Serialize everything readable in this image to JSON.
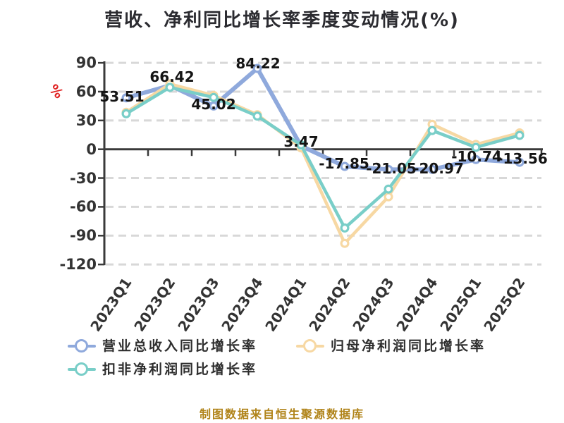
{
  "title": "营收、净利同比增长率季度变动情况(%)",
  "y_axis": {
    "unit": "%",
    "unit_color": "#E02020",
    "tick_labels": [
      "90",
      "60",
      "30",
      "0",
      "-30",
      "-60",
      "-90",
      "-120"
    ],
    "min": -120,
    "max": 90,
    "interval": 30
  },
  "chart_data": {
    "type": "line",
    "categories": [
      "2023Q1",
      "2023Q2",
      "2023Q3",
      "2023Q4",
      "2024Q1",
      "2024Q2",
      "2024Q3",
      "2024Q4",
      "2025Q1",
      "2025Q2"
    ],
    "ylim": [
      -120,
      90
    ],
    "grid": "horizontal dashed gridlines",
    "legend_position": "bottom-left",
    "series": [
      {
        "name": "营业总收入同比增长率",
        "color": "#8FA9DC",
        "line_width": 6,
        "values": [
          53.51,
          66.42,
          45.02,
          84.22,
          3.47,
          -17.85,
          -21.05,
          -20.97,
          -10.74,
          -13.56
        ],
        "point_labels": [
          "53.51",
          "66.42",
          "45.02",
          "84.22",
          "3.47",
          "-17.85",
          "-21.05",
          "-20.97",
          "-10.74",
          "-13.56"
        ]
      },
      {
        "name": "归母净利润同比增长率",
        "color": "#F7D8A3",
        "line_width": 4.5,
        "values": [
          38.5,
          68,
          56,
          36,
          1.5,
          -98,
          -49.5,
          26,
          5,
          17
        ]
      },
      {
        "name": "扣非净利润同比增长率",
        "color": "#79CEC8",
        "line_width": 4.5,
        "values": [
          37,
          64.5,
          54,
          34.5,
          4.5,
          -82,
          -41.5,
          19.5,
          2,
          14.5
        ]
      }
    ]
  },
  "footer": {
    "text": "制图数据来自恒生聚源数据库",
    "color": "#B08318"
  },
  "colors": {
    "background": "#FFFFFF",
    "axis": "#3A3A3A",
    "gridline": "#D8D8D8",
    "tick_label": "#333333",
    "data_label": "#141414",
    "title": "#2B2B30"
  }
}
